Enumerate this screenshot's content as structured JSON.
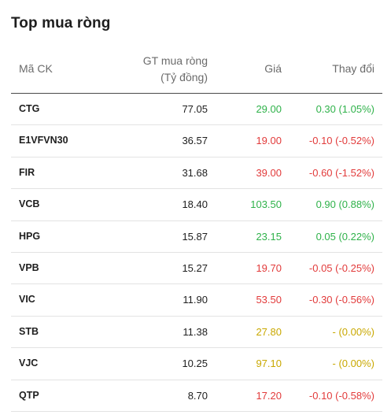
{
  "title": "Top mua ròng",
  "headers": {
    "code": "Mã CK",
    "value_line1": "GT mua ròng",
    "value_line2": "(Tỷ đồng)",
    "price": "Giá",
    "change": "Thay đổi"
  },
  "colors": {
    "up": "#2fb24a",
    "down": "#e23b3b",
    "flat": "#c9a800"
  },
  "rows": [
    {
      "code": "CTG",
      "value": "77.05",
      "price": "29.00",
      "change": "0.30 (1.05%)",
      "trend": "up"
    },
    {
      "code": "E1VFVN30",
      "value": "36.57",
      "price": "19.00",
      "change": "-0.10 (-0.52%)",
      "trend": "down"
    },
    {
      "code": "FIR",
      "value": "31.68",
      "price": "39.00",
      "change": "-0.60 (-1.52%)",
      "trend": "down"
    },
    {
      "code": "VCB",
      "value": "18.40",
      "price": "103.50",
      "change": "0.90 (0.88%)",
      "trend": "up"
    },
    {
      "code": "HPG",
      "value": "15.87",
      "price": "23.15",
      "change": "0.05 (0.22%)",
      "trend": "up"
    },
    {
      "code": "VPB",
      "value": "15.27",
      "price": "19.70",
      "change": "-0.05 (-0.25%)",
      "trend": "down"
    },
    {
      "code": "VIC",
      "value": "11.90",
      "price": "53.50",
      "change": "-0.30 (-0.56%)",
      "trend": "down"
    },
    {
      "code": "STB",
      "value": "11.38",
      "price": "27.80",
      "change": "- (0.00%)",
      "trend": "flat"
    },
    {
      "code": "VJC",
      "value": "10.25",
      "price": "97.10",
      "change": "- (0.00%)",
      "trend": "flat"
    },
    {
      "code": "QTP",
      "value": "8.70",
      "price": "17.20",
      "change": "-0.10 (-0.58%)",
      "trend": "down"
    }
  ]
}
